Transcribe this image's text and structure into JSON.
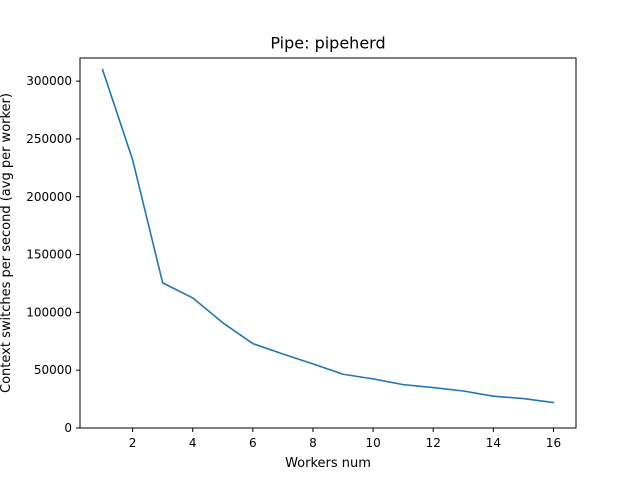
{
  "chart_data": {
    "type": "line",
    "title": "Pipe: pipeherd",
    "xlabel": "Workers num",
    "ylabel": "Context switches per second (avg per worker)",
    "xlim": [
      0.25,
      16.75
    ],
    "ylim": [
      0,
      320000
    ],
    "xticks": [
      2,
      4,
      6,
      8,
      10,
      12,
      14,
      16
    ],
    "yticks": [
      0,
      50000,
      100000,
      150000,
      200000,
      250000,
      300000
    ],
    "grid": false,
    "legend": "none",
    "color": "#1f77b4",
    "series": [
      {
        "x": [
          1,
          2,
          3,
          4,
          5,
          6,
          7,
          8,
          9,
          10,
          11,
          12,
          13,
          14,
          15,
          16
        ],
        "values": [
          310000,
          232000,
          125500,
          112500,
          91000,
          73000,
          64000,
          55500,
          46500,
          42500,
          37500,
          35000,
          32000,
          27500,
          25500,
          22000
        ]
      }
    ]
  }
}
